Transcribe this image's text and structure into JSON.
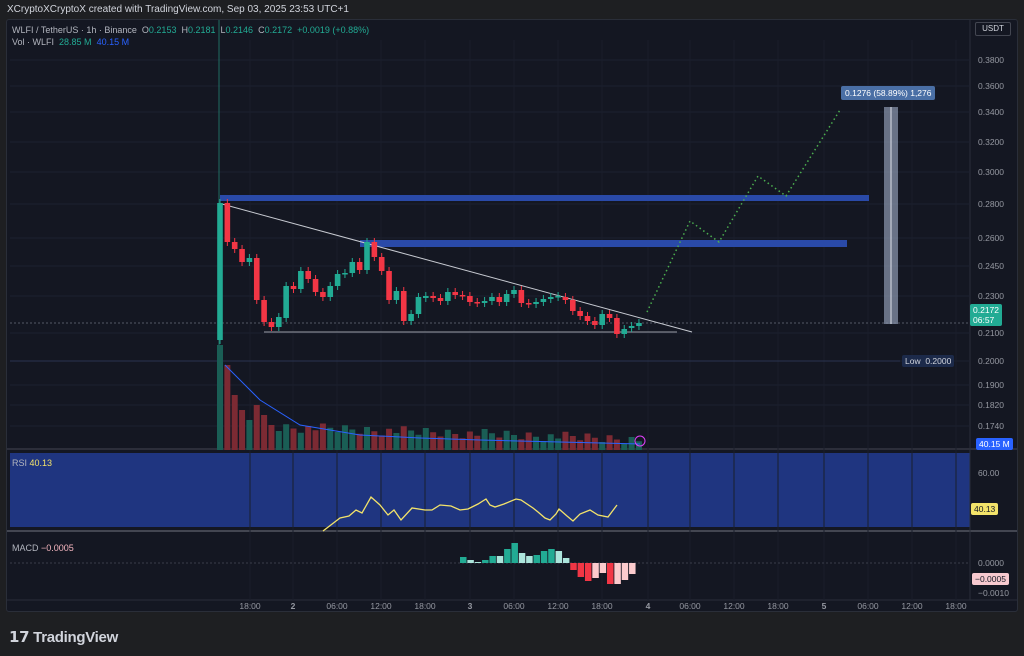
{
  "header": "XCryptoXCryptoX created with TradingView.com, Sep 03, 2025 23:53 UTC+1",
  "legend": {
    "symbol": "WLFI / TetherUS · 1h · Binance",
    "o_label": "O",
    "o": "0.2153",
    "h_label": "H",
    "h": "0.2181",
    "l_label": "L",
    "l": "0.2146",
    "c_label": "C",
    "c": "0.2172",
    "change": "+0.0019 (+0.88%)",
    "vol_label": "Vol · WLFI",
    "vol1": "28.85 M",
    "vol2": "40.15 M"
  },
  "currency": "USDT",
  "price_axis": [
    "0.3800",
    "0.3600",
    "0.3400",
    "0.3200",
    "0.3000",
    "0.2800",
    "0.2600",
    "0.2450",
    "0.2300",
    "0.2100",
    "0.2000",
    "0.1900",
    "0.1820",
    "0.1740"
  ],
  "last_price": {
    "value": "0.2172",
    "countdown": "06:57"
  },
  "low_label": {
    "label": "Low",
    "value": "0.2000"
  },
  "volume_tag": "40.15 M",
  "measure_label": "0.1276 (58.89%) 1,276",
  "rsi": {
    "label": "RSI",
    "value": "40.13",
    "axis": [
      "60.00"
    ]
  },
  "macd": {
    "label": "MACD",
    "value": "−0.0005",
    "axis": [
      "0.0000",
      "−0.0010"
    ]
  },
  "time_axis": [
    "18:00",
    "2",
    "06:00",
    "12:00",
    "18:00",
    "3",
    "06:00",
    "12:00",
    "18:00",
    "4",
    "06:00",
    "12:00",
    "18:00",
    "5",
    "06:00",
    "12:00",
    "18:00"
  ],
  "colors": {
    "up": "#22ab94",
    "down": "#f23645",
    "zone": "#2a4aa8",
    "rsi_fill": "#1f3580",
    "rsi_line": "#f3e36a",
    "projection": "#4caf50"
  },
  "brand": "TradingView"
}
